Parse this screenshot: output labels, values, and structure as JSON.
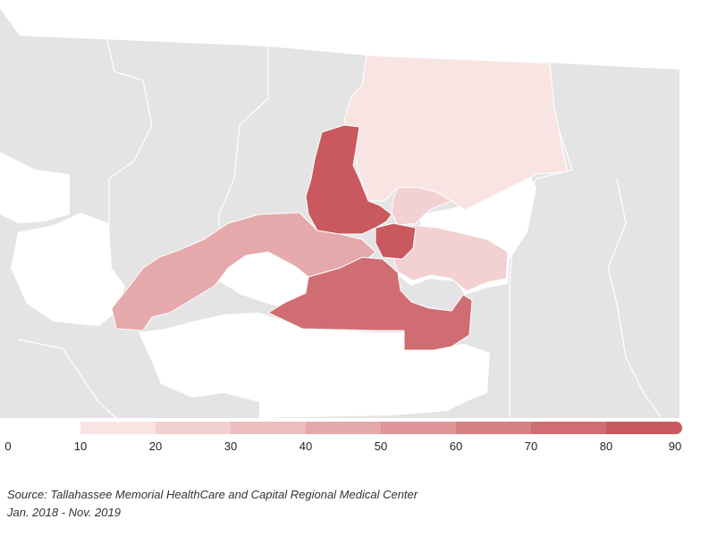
{
  "legend": {
    "ticks": [
      "0",
      "10",
      "20",
      "30",
      "40",
      "50",
      "60",
      "70",
      "80",
      "90"
    ],
    "colors": [
      "#f9e4e4",
      "#f3d0d1",
      "#ecbcbe",
      "#e5a9ab",
      "#de9598",
      "#d78185",
      "#d06d72",
      "#c9595f"
    ]
  },
  "source": {
    "line1": "Source: Tallahassee Memorial HealthCare and Capital Regional Medical Center",
    "line2": "Jan. 2018 - Nov. 2019"
  },
  "colors": {
    "land": "#e4e4e4",
    "water": "#ffffff",
    "border": "#ffffff"
  }
}
